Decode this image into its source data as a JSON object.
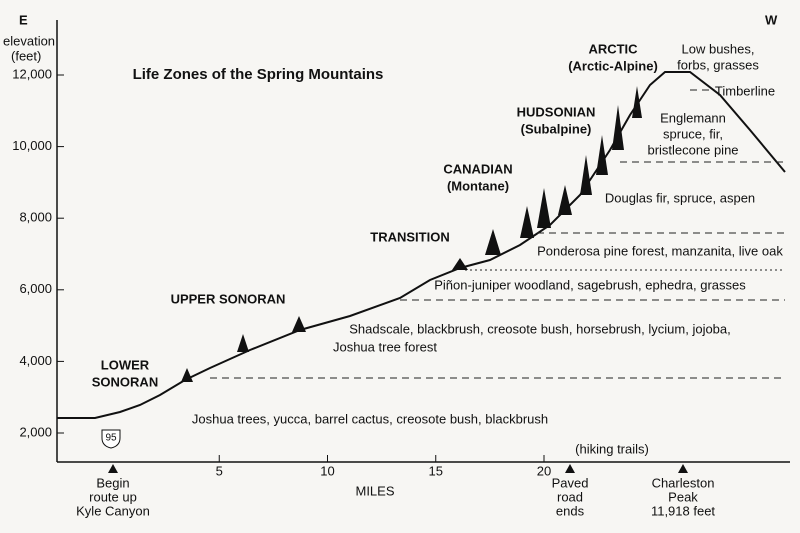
{
  "title": "Life Zones of the Spring Mountains",
  "direction": {
    "east": "E",
    "west": "W"
  },
  "y_axis": {
    "label": [
      "elevation",
      "(feet)"
    ],
    "ticks": [
      {
        "value": 2000,
        "label": "2,000"
      },
      {
        "value": 4000,
        "label": "4,000"
      },
      {
        "value": 6000,
        "label": "6,000"
      },
      {
        "value": 8000,
        "label": "8,000"
      },
      {
        "value": 10000,
        "label": "10,000"
      },
      {
        "value": 12000,
        "label": "12,000"
      }
    ]
  },
  "x_axis": {
    "label": "MILES",
    "ticks": [
      5,
      10,
      15,
      20
    ]
  },
  "zones": [
    {
      "lines": [
        "LOWER",
        "SONORAN"
      ]
    },
    {
      "lines": [
        "UPPER SONORAN"
      ]
    },
    {
      "lines": [
        "TRANSITION"
      ]
    },
    {
      "lines": [
        "CANADIAN",
        "(Montane)"
      ]
    },
    {
      "lines": [
        "HUDSONIAN",
        "(Subalpine)"
      ]
    },
    {
      "lines": [
        "ARCTIC",
        "(Arctic-Alpine)"
      ]
    }
  ],
  "descriptions": [
    {
      "lines": [
        "Joshua trees, yucca, barrel cactus, creosote bush, blackbrush"
      ]
    },
    {
      "lines": [
        "Shadscale, blackbrush, creosote bush, horsebrush, lycium, jojoba,"
      ]
    },
    {
      "lines": [
        "Joshua tree forest"
      ]
    },
    {
      "lines": [
        "Piñon-juniper woodland, sagebrush, ephedra, grasses"
      ]
    },
    {
      "lines": [
        "Ponderosa pine forest, manzanita, live oak"
      ]
    },
    {
      "lines": [
        "Douglas fir, spruce, aspen"
      ]
    },
    {
      "lines": [
        "Englemann",
        "spruce, fir,",
        "bristlecone pine"
      ]
    },
    {
      "lines": [
        "Timberline"
      ]
    },
    {
      "lines": [
        "Low bushes,",
        "forbs, grasses"
      ]
    }
  ],
  "markers": [
    {
      "lines": [
        "Begin",
        "route up",
        "Kyle Canyon"
      ]
    },
    {
      "lines": [
        "Paved",
        "road",
        "ends"
      ]
    },
    {
      "lines": [
        "Charleston",
        "Peak",
        "11,918 feet"
      ]
    }
  ],
  "route_shield": "95",
  "hiking_trails": "(hiking trails)"
}
